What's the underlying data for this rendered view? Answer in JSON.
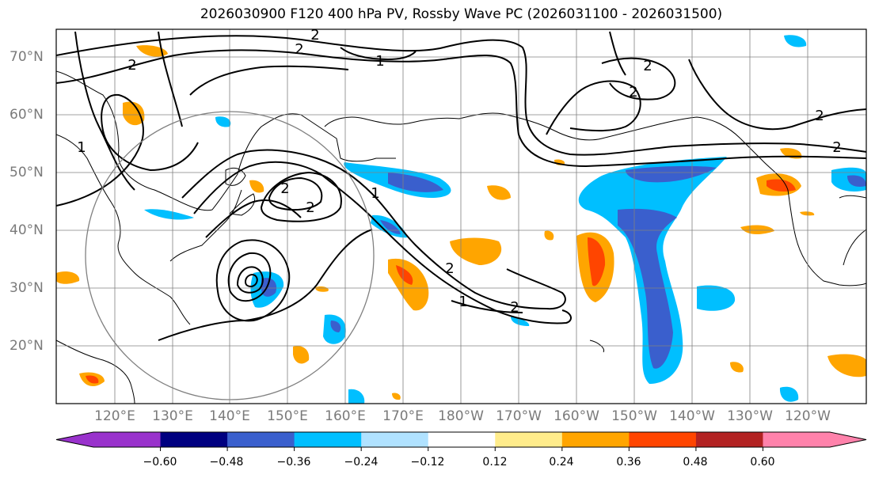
{
  "title": "2026030900 F120 400 hPa PV, Rossby Wave PC (2026031100 - 2026031500)",
  "lat_labels": [
    "70°N",
    "60°N",
    "50°N",
    "40°N",
    "30°N",
    "20°N"
  ],
  "lon_labels": [
    "120°E",
    "130°E",
    "140°E",
    "150°E",
    "160°E",
    "170°E",
    "180°W",
    "170°W",
    "160°W",
    "150°W",
    "140°W",
    "130°W",
    "120°W"
  ],
  "contour_labels": [
    "2",
    "2",
    "1",
    "2",
    "2",
    "2",
    "2",
    "1",
    "2",
    "1",
    "2",
    "2",
    "1",
    "2",
    "2"
  ],
  "colorbar": {
    "colors": [
      "#9932cc",
      "#000080",
      "#3a5fcd",
      "#00bfff",
      "#b0e2ff",
      "#ffffff",
      "#ffec8b",
      "#ffa500",
      "#ff4500",
      "#b22222",
      "#ff82ab"
    ],
    "ticks": [
      "−0.60",
      "−0.48",
      "−0.36",
      "−0.24",
      "−0.12",
      "0.12",
      "0.24",
      "0.36",
      "0.48",
      "0.60"
    ]
  },
  "colors": {
    "land_outline": "#000000",
    "grid": "#808080",
    "contour": "#000000"
  }
}
